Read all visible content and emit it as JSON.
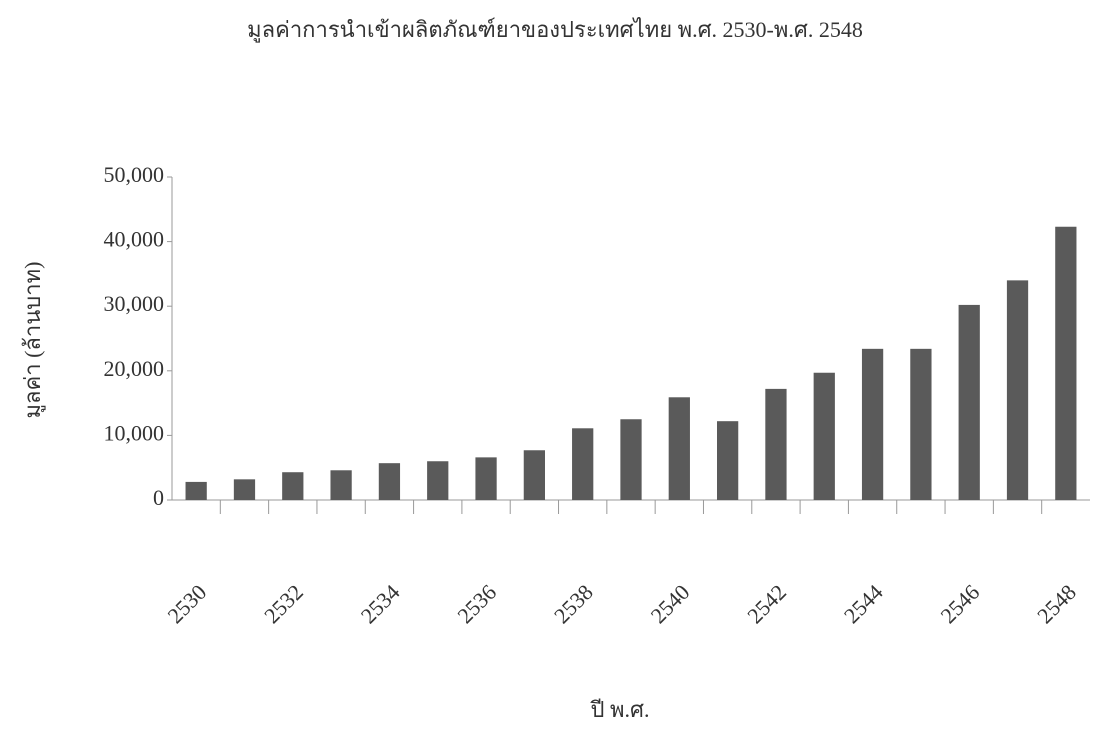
{
  "chart_data": {
    "type": "bar",
    "title": "มูลค่าการนำเข้าผลิตภัณฑ์ยาของประเทศไทย พ.ศ. 2530-พ.ศ. 2548",
    "x_label": "ปี พ.ศ.",
    "y_label": "มูลค่า (ล้านบาท)",
    "categories": [
      "2530",
      null,
      "2532",
      null,
      "2534",
      null,
      "2536",
      null,
      "2538",
      null,
      "2540",
      null,
      "2542",
      null,
      "2544",
      null,
      "2546",
      null,
      "2548"
    ],
    "values": [
      2800,
      3200,
      4300,
      4600,
      5700,
      6000,
      6600,
      7700,
      11100,
      12500,
      15900,
      12200,
      17200,
      19700,
      23400,
      23400,
      30200,
      34000,
      42300
    ],
    "color": "#5a5a5a",
    "ylim": [
      0,
      50000
    ],
    "yticks": [
      0,
      {
        "value": 10000,
        "label": "10,000"
      },
      {
        "value": 20000,
        "label": "20,000"
      },
      {
        "value": 30000,
        "label": "30,000"
      },
      {
        "value": 40000,
        "label": "40,000"
      },
      {
        "value": 50000,
        "label": "50,000"
      }
    ],
    "grid": false
  }
}
